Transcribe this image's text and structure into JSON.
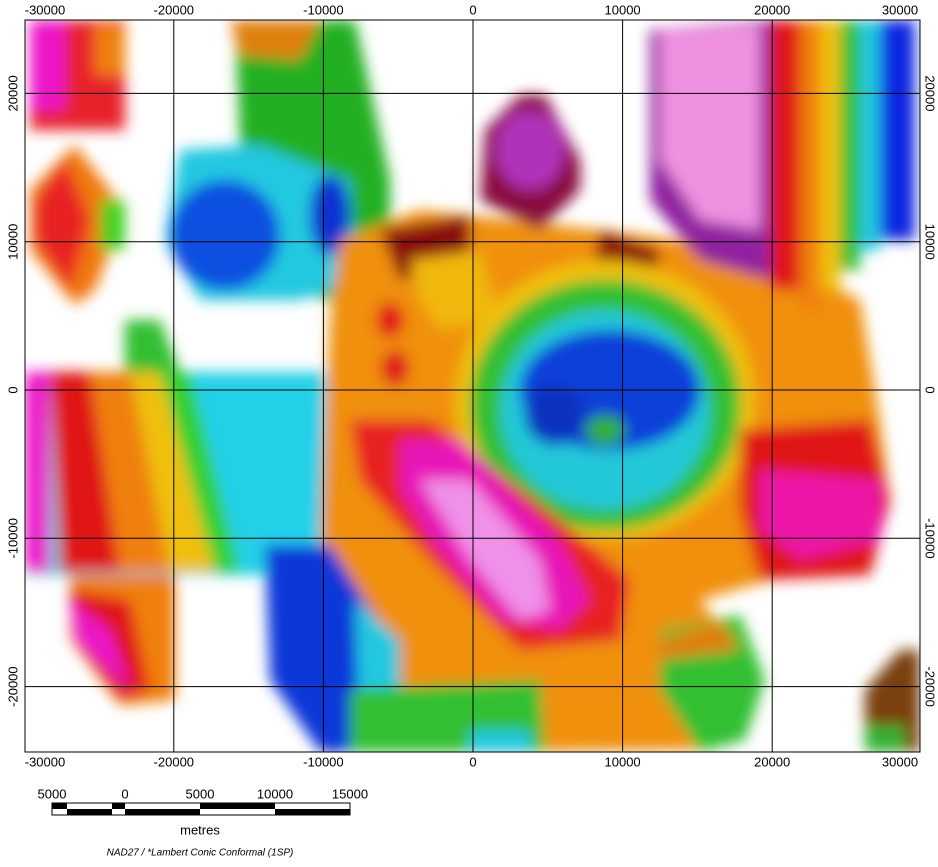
{
  "map": {
    "x_ticks": [
      -30000,
      -20000,
      -10000,
      0,
      10000,
      20000,
      30000
    ],
    "y_ticks": [
      20000,
      10000,
      0,
      -10000,
      -20000
    ],
    "scale_bar": {
      "labels": [
        "5000",
        "0",
        "5000",
        "10000",
        "15000"
      ],
      "unit": "metres"
    },
    "projection": "NAD27 / *Lambert Conic Conformal (1SP)"
  }
}
